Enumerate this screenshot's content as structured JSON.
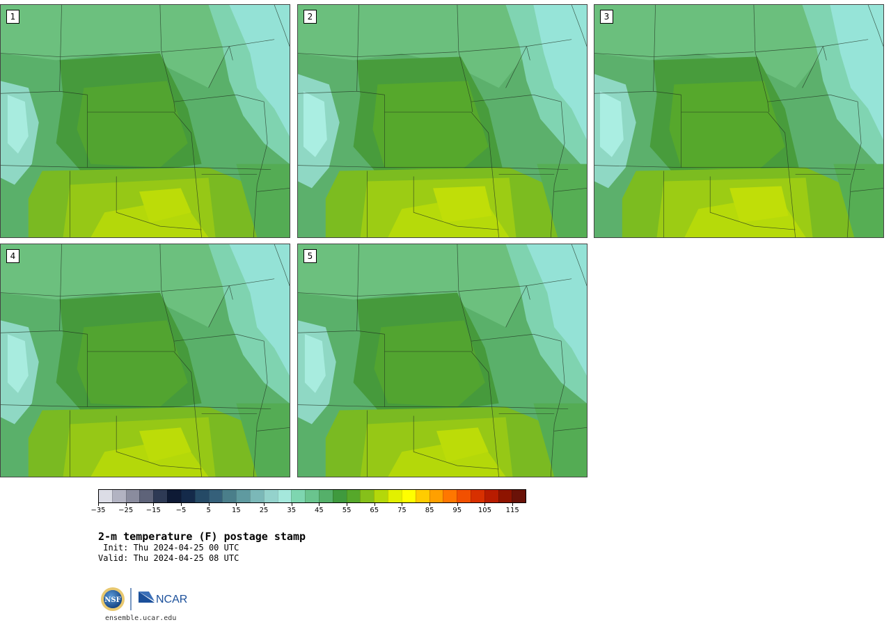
{
  "panels": [
    {
      "label": "1"
    },
    {
      "label": "2"
    },
    {
      "label": "3"
    },
    {
      "label": "4"
    },
    {
      "label": "5"
    }
  ],
  "colorbar": {
    "colors": [
      "#dcdde6",
      "#b2b3c2",
      "#8a8c9e",
      "#5e6379",
      "#2e3a55",
      "#0e1a35",
      "#142a4a",
      "#254a66",
      "#35607a",
      "#4a7e8a",
      "#5f9aa0",
      "#7bb8b8",
      "#94d2cc",
      "#a5e8dc",
      "#7ed6b0",
      "#6ac48e",
      "#55b06a",
      "#3f9a3e",
      "#56a82a",
      "#86c01a",
      "#b4d80a",
      "#e2f000",
      "#ffff00",
      "#ffcc00",
      "#ffa000",
      "#ff7700",
      "#f25000",
      "#d83000",
      "#b81c00",
      "#8e1400",
      "#6a1208"
    ],
    "min": -35,
    "max": 120,
    "tick_labels": [
      "−35",
      "−25",
      "−15",
      "−5",
      "5",
      "15",
      "25",
      "35",
      "45",
      "55",
      "65",
      "75",
      "85",
      "95",
      "105",
      "115"
    ],
    "tick_values": [
      -35,
      -25,
      -15,
      -5,
      5,
      15,
      25,
      35,
      45,
      55,
      65,
      75,
      85,
      95,
      105,
      115
    ]
  },
  "title": "2-m temperature (F) postage stamp",
  "init": " Init: Thu 2024-04-25 00 UTC",
  "valid": "Valid: Thu 2024-04-25 08 UTC",
  "logo": {
    "left": "NSF",
    "right": "NCAR"
  },
  "site": "ensemble.ucar.edu"
}
